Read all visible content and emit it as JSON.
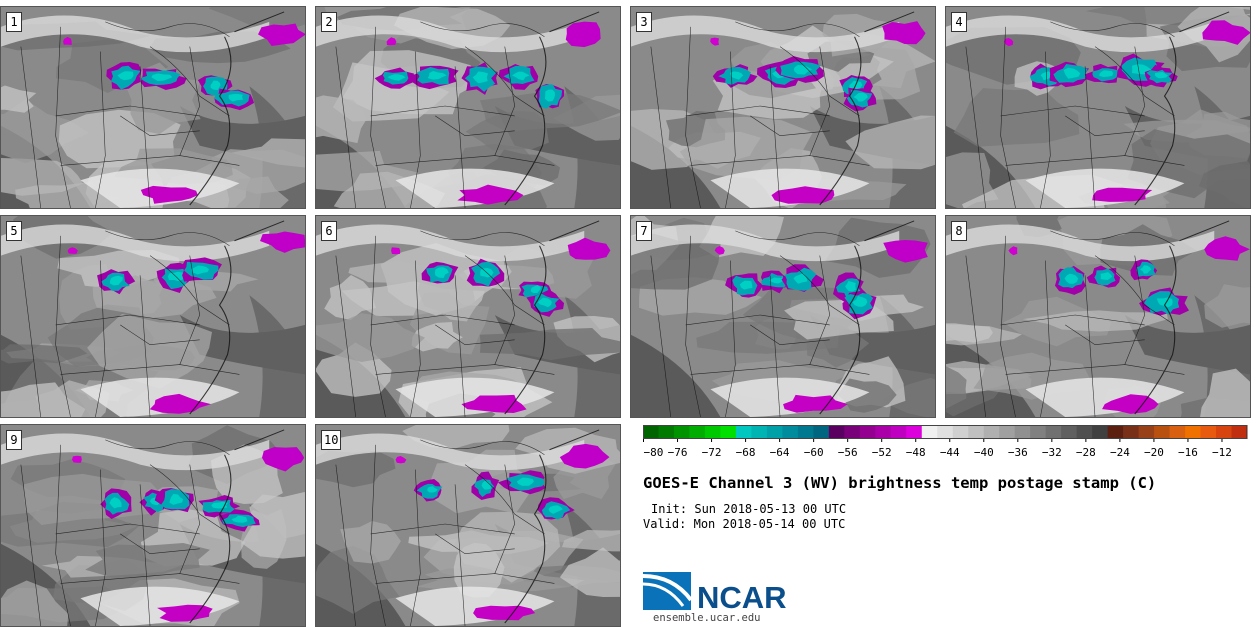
{
  "product": {
    "title": "GOES-E Channel 3 (WV) brightness temp postage stamp (C)",
    "init_label": "Init:",
    "init_time": "Sun 2018-05-13 00 UTC",
    "valid_label": "Valid:",
    "valid_time": "Mon 2018-05-14 00 UTC"
  },
  "members": [
    "1",
    "2",
    "3",
    "4",
    "5",
    "6",
    "7",
    "8",
    "9",
    "10"
  ],
  "colorbar": {
    "tick_labels": [
      "−80",
      "−76",
      "−72",
      "−68",
      "−64",
      "−60",
      "−56",
      "−52",
      "−48",
      "−44",
      "−40",
      "−36",
      "−32",
      "−28",
      "−24",
      "−20",
      "−16",
      "−12"
    ],
    "colors": [
      "#006400",
      "#007a00",
      "#009300",
      "#00ad00",
      "#00c800",
      "#00e000",
      "#00c8c0",
      "#00b4b4",
      "#00a0a8",
      "#008c9c",
      "#007890",
      "#006680",
      "#5a0060",
      "#780078",
      "#940090",
      "#aa00a8",
      "#c000c0",
      "#dc00dc",
      "#f0f0f0",
      "#e0e0e0",
      "#d0d0d0",
      "#c0c0c0",
      "#b0b0b0",
      "#a0a0a0",
      "#909090",
      "#808080",
      "#707070",
      "#606060",
      "#505050",
      "#404040",
      "#5c2010",
      "#783018",
      "#984018",
      "#b85010",
      "#d86010",
      "#f07000",
      "#e85a10",
      "#d84410",
      "#c03010"
    ]
  },
  "logo": {
    "name": "NCAR",
    "url": "ensemble.ucar.edu"
  }
}
